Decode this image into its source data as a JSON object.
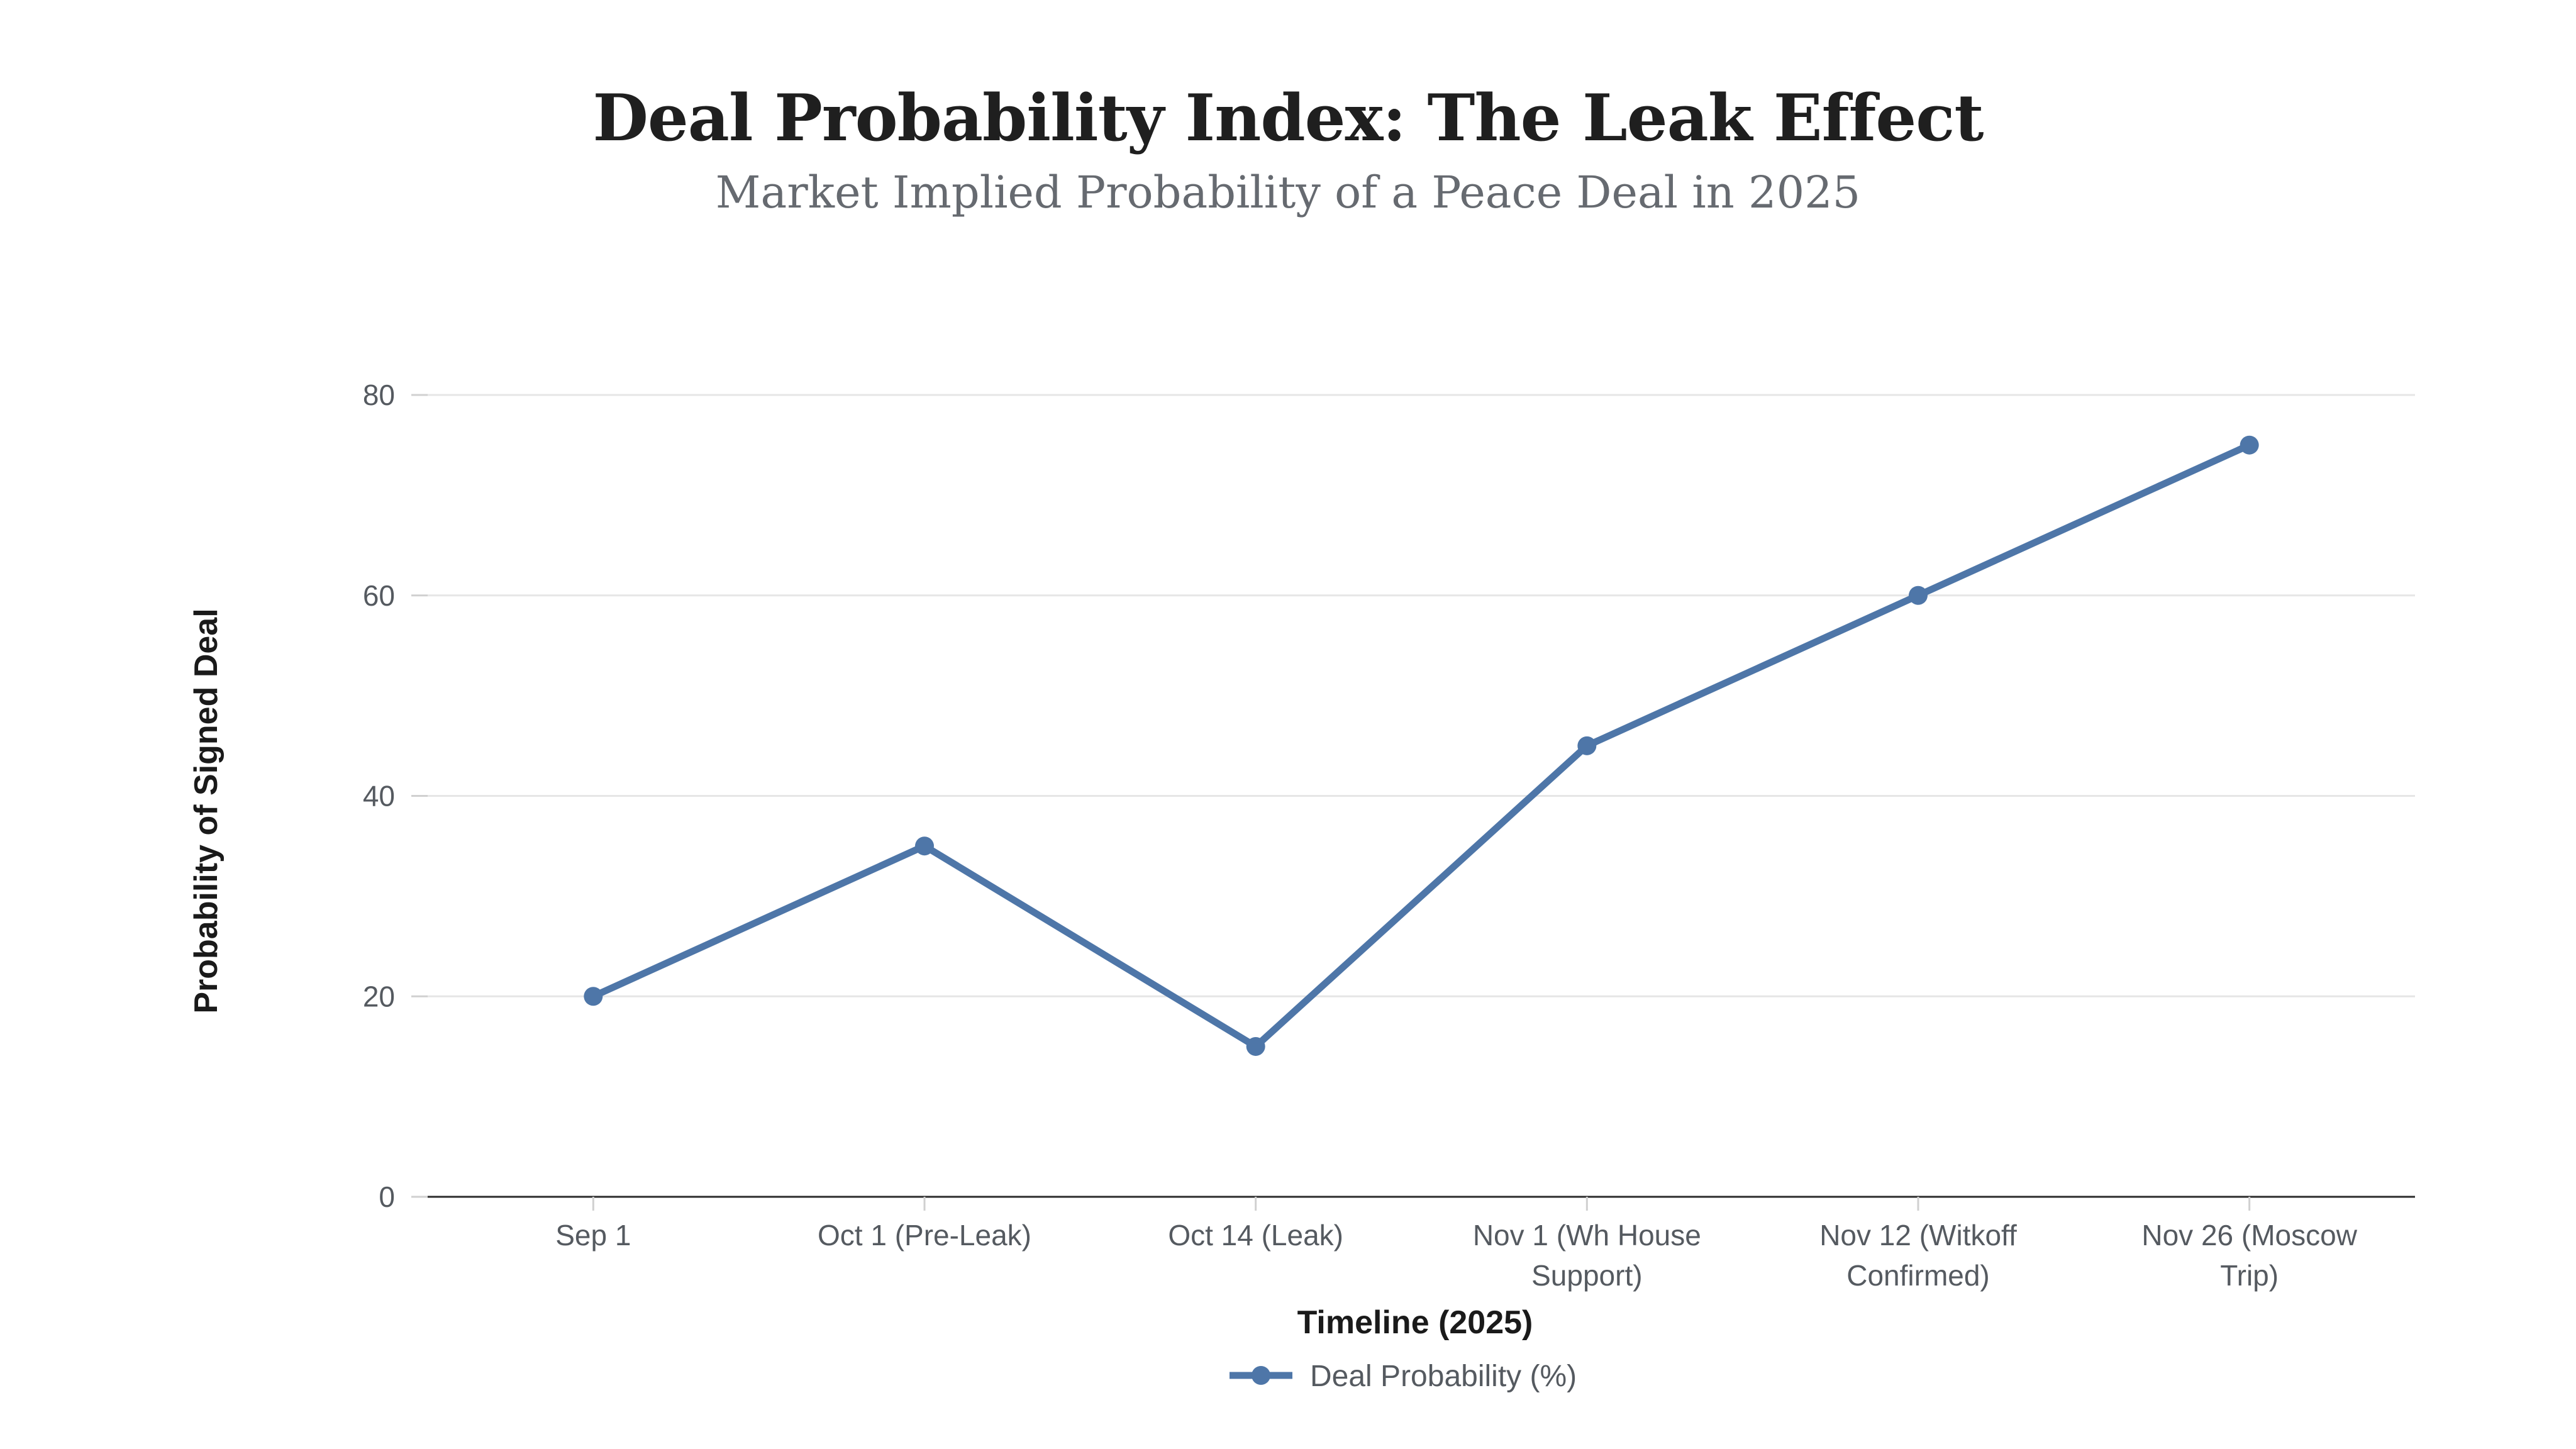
{
  "chart_data": {
    "type": "line",
    "title": "Deal Probability Index: The Leak Effect",
    "subtitle": "Market Implied Probability of a Peace Deal in 2025",
    "xlabel": "Timeline (2025)",
    "ylabel": "Probability of Signed Deal",
    "categories": [
      [
        "Sep 1"
      ],
      [
        "Oct 1 (Pre-Leak)"
      ],
      [
        "Oct 14 (Leak)"
      ],
      [
        "Nov 1 (Wh House",
        "Support)"
      ],
      [
        "Nov 12 (Witkoff",
        "Confirmed)"
      ],
      [
        "Nov 26 (Moscow",
        "Trip)"
      ]
    ],
    "series": [
      {
        "name": "Deal Probability (%)",
        "values": [
          20,
          35,
          15,
          45,
          60,
          75
        ],
        "color": "#4e76a8"
      }
    ],
    "ylim": [
      0,
      80
    ],
    "yticks": [
      0,
      20,
      40,
      60,
      80
    ],
    "grid": true,
    "legend": "bottom-center"
  }
}
